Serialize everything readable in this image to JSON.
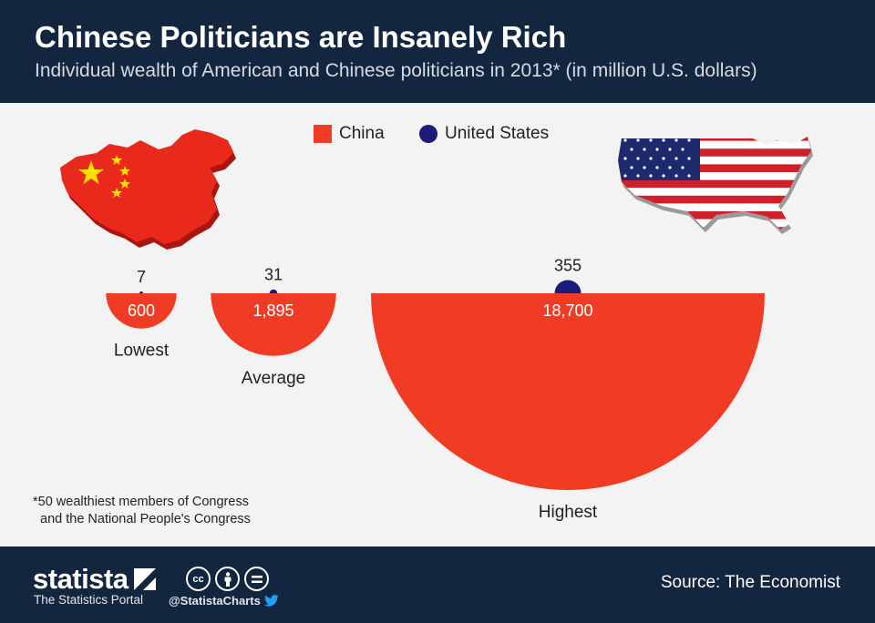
{
  "header": {
    "title": "Chinese Politicians are Insanely Rich",
    "subtitle": "Individual wealth of American and Chinese politicians in 2013* (in million U.S. dollars)"
  },
  "legend": {
    "china": "China",
    "us": "United States"
  },
  "colors": {
    "china": "#f03c24",
    "us": "#1b1b7a",
    "header_bg": "#13263f",
    "background": "#f3f3f3"
  },
  "icons": [
    "china-map-icon",
    "usa-map-icon",
    "creative-commons-icon",
    "attribution-icon",
    "no-derivatives-icon",
    "twitter-icon"
  ],
  "chart_data": {
    "type": "bar",
    "categories": [
      "Lowest",
      "Average",
      "Highest"
    ],
    "series": [
      {
        "name": "China",
        "values": [
          600,
          1895,
          18700
        ],
        "labels": [
          "600",
          "1,895",
          "18,700"
        ]
      },
      {
        "name": "United States",
        "values": [
          7,
          31,
          355
        ],
        "labels": [
          "7",
          "31",
          "355"
        ]
      }
    ],
    "title": "Chinese Politicians are Insanely Rich",
    "subtitle": "Individual wealth of American and Chinese politicians in 2013* (in million U.S. dollars)",
    "shape": "semicircles with area proportional to value",
    "legend_position": "top-center",
    "grid": false
  },
  "footnote": {
    "line1": "*50 wealthiest members of Congress",
    "line2": "and the National People's Congress"
  },
  "footer": {
    "logo": "statista",
    "logo_sub": "The Statistics Portal",
    "handle": "@StatistaCharts",
    "source": "Source: The Economist"
  }
}
